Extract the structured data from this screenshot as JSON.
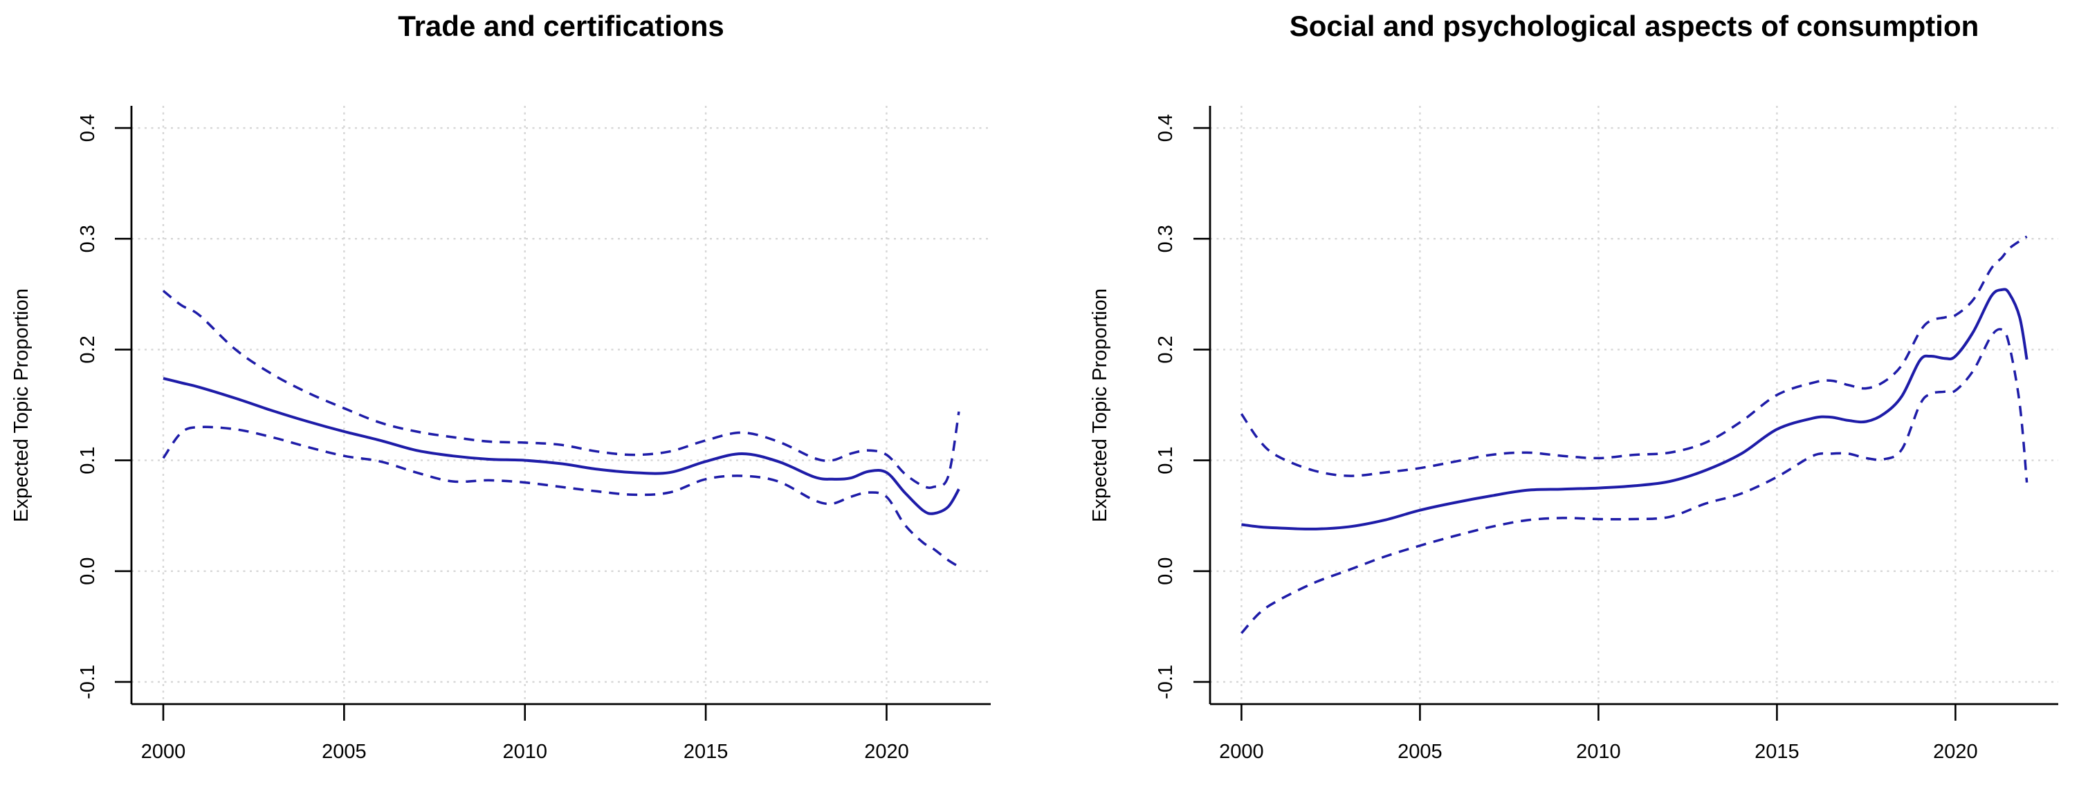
{
  "figure": {
    "background": "#ffffff",
    "description": "Two R-style smoothed topic-prevalence line charts with dashed 95% confidence bands"
  },
  "colors": {
    "curve": "#1E1CA8",
    "grid": "#d6d6d6",
    "axis": "#000000",
    "text": "#000000"
  },
  "chart_data": [
    {
      "type": "line",
      "title": "Trade and certifications",
      "xlabel": "",
      "ylabel": "Expected Topic Proportion",
      "xlim": [
        1999.12,
        2022.88
      ],
      "ylim": [
        -0.12,
        0.42
      ],
      "grid": "dotted both axes",
      "legend_position": "none",
      "x_ticks": [
        2000,
        2005,
        2010,
        2015,
        2020
      ],
      "x_tick_labels": [
        "2000",
        "2005",
        "2010",
        "2015",
        "2020"
      ],
      "y_ticks": [
        -0.1,
        0.0,
        0.1,
        0.2,
        0.3,
        0.4
      ],
      "y_tick_labels": [
        "-0.1",
        "0.0",
        "0.1",
        "0.2",
        "0.3",
        "0.4"
      ],
      "x": [
        2000,
        2000.5,
        2001,
        2002,
        2003,
        2004,
        2005,
        2006,
        2007,
        2008,
        2009,
        2010,
        2011,
        2012,
        2013,
        2014,
        2015,
        2016,
        2017,
        2018,
        2018.5,
        2019,
        2019.5,
        2020,
        2020.5,
        2021,
        2021.3,
        2021.7,
        2022
      ],
      "series": [
        {
          "name": "Expected topic proportion (mean)",
          "style": "solid",
          "y": [
            0.174,
            0.17,
            0.166,
            0.156,
            0.145,
            0.135,
            0.126,
            0.118,
            0.109,
            0.104,
            0.101,
            0.1,
            0.097,
            0.092,
            0.089,
            0.089,
            0.099,
            0.106,
            0.099,
            0.085,
            0.083,
            0.084,
            0.09,
            0.089,
            0.071,
            0.055,
            0.052,
            0.058,
            0.074
          ]
        },
        {
          "name": "Upper 95% CI",
          "style": "dashed",
          "y": [
            0.253,
            0.24,
            0.231,
            0.2,
            0.178,
            0.161,
            0.147,
            0.134,
            0.126,
            0.121,
            0.117,
            0.116,
            0.114,
            0.108,
            0.105,
            0.108,
            0.118,
            0.125,
            0.117,
            0.102,
            0.1,
            0.106,
            0.109,
            0.105,
            0.088,
            0.077,
            0.076,
            0.085,
            0.144
          ]
        },
        {
          "name": "Lower 95% CI",
          "style": "dashed",
          "y": [
            0.102,
            0.125,
            0.13,
            0.128,
            0.121,
            0.112,
            0.104,
            0.099,
            0.089,
            0.081,
            0.082,
            0.08,
            0.076,
            0.072,
            0.069,
            0.071,
            0.083,
            0.086,
            0.081,
            0.064,
            0.061,
            0.067,
            0.071,
            0.067,
            0.042,
            0.026,
            0.02,
            0.01,
            0.004
          ]
        }
      ]
    },
    {
      "type": "line",
      "title": "Social and psychological aspects of consumption",
      "xlabel": "",
      "ylabel": "Expected Topic Proportion",
      "xlim": [
        1999.12,
        2022.88
      ],
      "ylim": [
        -0.12,
        0.42
      ],
      "grid": "dotted both axes",
      "legend_position": "none",
      "x_ticks": [
        2000,
        2005,
        2010,
        2015,
        2020
      ],
      "x_tick_labels": [
        "2000",
        "2005",
        "2010",
        "2015",
        "2020"
      ],
      "y_ticks": [
        -0.1,
        0.0,
        0.1,
        0.2,
        0.3,
        0.4
      ],
      "y_tick_labels": [
        "-0.1",
        "0.0",
        "0.1",
        "0.2",
        "0.3",
        "0.4"
      ],
      "x": [
        2000,
        2000.5,
        2001,
        2002,
        2003,
        2004,
        2005,
        2006,
        2007,
        2008,
        2009,
        2010,
        2011,
        2012,
        2013,
        2014,
        2015,
        2016,
        2016.5,
        2017,
        2017.5,
        2018,
        2018.5,
        2019,
        2019.3,
        2019.7,
        2020,
        2020.5,
        2021,
        2021.3,
        2021.5,
        2021.8,
        2022
      ],
      "series": [
        {
          "name": "Expected topic proportion (mean)",
          "style": "solid",
          "y": [
            0.042,
            0.04,
            0.039,
            0.038,
            0.04,
            0.046,
            0.055,
            0.062,
            0.068,
            0.073,
            0.074,
            0.075,
            0.077,
            0.081,
            0.091,
            0.106,
            0.128,
            0.138,
            0.139,
            0.136,
            0.135,
            0.142,
            0.158,
            0.19,
            0.194,
            0.192,
            0.194,
            0.216,
            0.248,
            0.254,
            0.251,
            0.229,
            0.191
          ]
        },
        {
          "name": "Upper 95% CI",
          "style": "dashed",
          "y": [
            0.142,
            0.118,
            0.104,
            0.091,
            0.086,
            0.089,
            0.093,
            0.099,
            0.105,
            0.107,
            0.104,
            0.102,
            0.105,
            0.107,
            0.116,
            0.135,
            0.159,
            0.17,
            0.172,
            0.168,
            0.165,
            0.171,
            0.186,
            0.216,
            0.226,
            0.229,
            0.231,
            0.245,
            0.273,
            0.283,
            0.291,
            0.298,
            0.302
          ]
        },
        {
          "name": "Lower 95% CI",
          "style": "dashed",
          "y": [
            -0.056,
            -0.038,
            -0.027,
            -0.011,
            0.001,
            0.013,
            0.023,
            0.032,
            0.04,
            0.046,
            0.048,
            0.047,
            0.047,
            0.049,
            0.061,
            0.07,
            0.085,
            0.104,
            0.106,
            0.106,
            0.102,
            0.101,
            0.11,
            0.15,
            0.16,
            0.162,
            0.163,
            0.181,
            0.212,
            0.218,
            0.205,
            0.151,
            0.08
          ]
        }
      ]
    }
  ]
}
